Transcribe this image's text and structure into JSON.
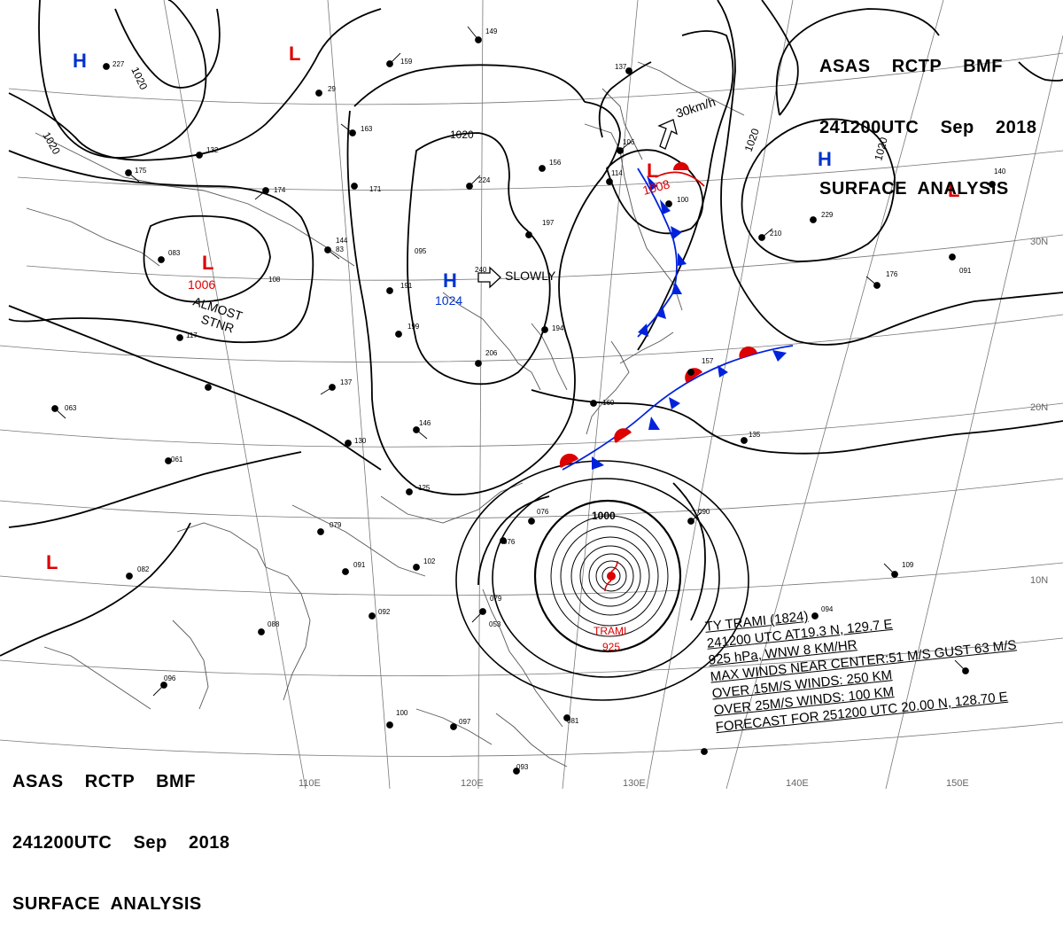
{
  "header": {
    "line1": "ASAS    RCTP    BMF",
    "line2": "241200UTC    Sep    2018",
    "line3": "SURFACE  ANALYSIS"
  },
  "pressure_systems": [
    {
      "type": "H",
      "value": "",
      "color": "#0033cc"
    },
    {
      "type": "L",
      "value": "",
      "color": "#dd0000"
    },
    {
      "type": "L",
      "value": "1006",
      "color": "#dd0000",
      "note": "ALMOST STNR"
    },
    {
      "type": "H",
      "value": "1024",
      "color": "#0033cc",
      "note": "SLOWLY"
    },
    {
      "type": "L",
      "value": "1008",
      "color": "#dd0000"
    },
    {
      "type": "H",
      "value": "",
      "color": "#0033cc"
    },
    {
      "type": "L",
      "value": "",
      "color": "#dd0000"
    },
    {
      "type": "L",
      "value": "",
      "color": "#dd0000"
    }
  ],
  "notes": {
    "almost_stnr_1": "ALMOST",
    "almost_stnr_2": "STNR",
    "slowly": "SLOWLY",
    "motion_speed": "30km/h",
    "typhoon_name": "TRAMI",
    "typhoon_pressure": "925"
  },
  "isobar_labels": [
    "1020",
    "1020",
    "1020",
    "1020",
    "1020",
    "1000"
  ],
  "grid_labels": {
    "lon": [
      "110E",
      "120E",
      "130E",
      "140E",
      "150E"
    ],
    "lat": [
      "30N",
      "20N",
      "10N"
    ]
  },
  "typhoon_info": {
    "line1": "TY  TRAMI  (1824)",
    "line2": "241200 UTC  AT19.3 N, 129.7 E",
    "line3": "925 hPa, WNW  8 KM/HR",
    "line4": "MAX WINDS NEAR CENTER:51 M/S GUST 63 M/S",
    "line5": "OVER 15M/S WINDS: 250 KM",
    "line6": "OVER 25M/S WINDS: 100 KM",
    "line7": "FORECAST FOR 251200 UTC 20.00 N, 128.70 E"
  },
  "stations": [
    "149",
    "159",
    "29",
    "163",
    "171",
    "174",
    "144",
    "83",
    "191",
    "199",
    "095",
    "137",
    "130",
    "125",
    "079",
    "091",
    "102",
    "146",
    "224",
    "197",
    "240",
    "206",
    "194",
    "156",
    "106",
    "114",
    "100",
    "137",
    "210",
    "229",
    "176",
    "140",
    "091",
    "135",
    "157",
    "160",
    "076",
    "076",
    "053",
    "079",
    "090",
    "109",
    "094",
    "092",
    "088",
    "100",
    "096",
    "097",
    "081",
    "093",
    "082",
    "061",
    "063",
    "227",
    "132",
    "175",
    "083",
    "108",
    "117"
  ],
  "colors": {
    "high": "#0033cc",
    "low": "#dd0000",
    "cold_front": "#0022dd",
    "warm_front": "#dd0000",
    "isobar": "#000000",
    "coast": "#555555",
    "grid": "#777777"
  }
}
